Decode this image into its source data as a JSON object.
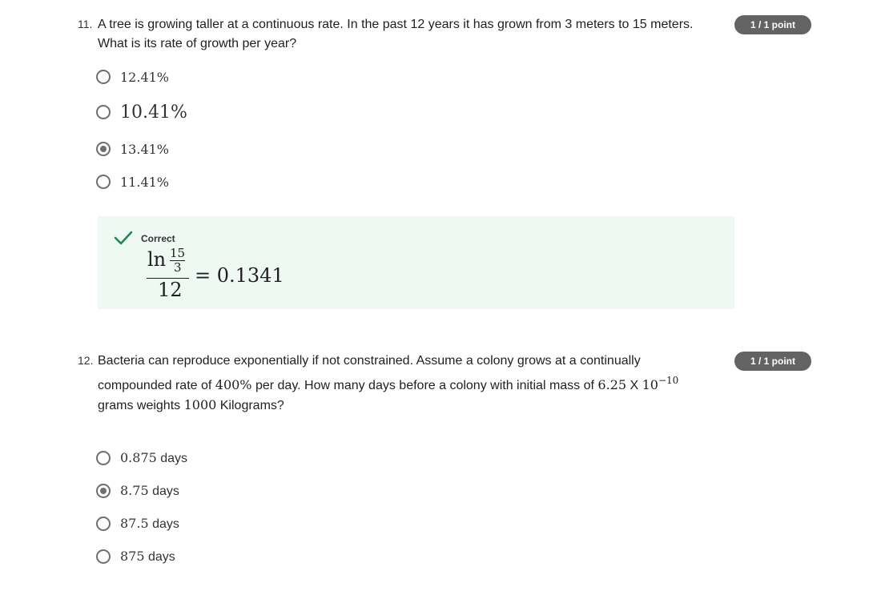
{
  "q11": {
    "number": "11.",
    "text_line1": "A tree is growing taller at a continuous rate. In the past 12 years it has grown from 3 meters to 15 meters.",
    "text_line2": "What is its rate of growth per year?",
    "badge": "1 / 1 point",
    "options": [
      {
        "label": "12.41%",
        "selected": false
      },
      {
        "label": "10.41%",
        "selected": false
      },
      {
        "label": "13.41%",
        "selected": true
      },
      {
        "label": "11.41%",
        "selected": false
      }
    ],
    "feedback": {
      "status": "Correct",
      "ln": "ln",
      "numerator": "15",
      "denominator_small": "3",
      "denominator": "12",
      "result": "= 0.1341"
    }
  },
  "q12": {
    "number": "12.",
    "text_line1": "Bacteria can reproduce exponentially if not constrained. Assume a colony grows at a continually",
    "text_line2_pre": "compounded rate of ",
    "rate": "400%",
    "text_line2_mid": " per day. How many days before a colony with initial mass of ",
    "mass_coeff": "6.25",
    "mass_x": " X ",
    "mass_base": "10",
    "mass_exp": "−10",
    "text_line3_pre": "grams weights ",
    "target_mass": "1000",
    "text_line3_post": " Kilograms?",
    "badge": "1 / 1 point",
    "options": [
      {
        "value": "0.875",
        "unit": " days",
        "selected": false
      },
      {
        "value": "8.75",
        "unit": " days",
        "selected": true
      },
      {
        "value": "87.5",
        "unit": " days",
        "selected": false
      },
      {
        "value": "875",
        "unit": " days",
        "selected": false
      }
    ]
  },
  "colors": {
    "badge": "#636363",
    "feedback_bg": "#eff9f4",
    "check": "#1f8354",
    "radio": "#6f6f6f"
  }
}
